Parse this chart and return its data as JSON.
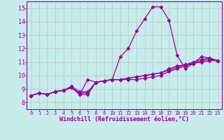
{
  "xlabel": "Windchill (Refroidissement éolien,°C)",
  "bg_color": "#c8ecec",
  "line_color": "#990099",
  "grid_color": "#b0c8c8",
  "ylim": [
    7.5,
    15.5
  ],
  "xlim": [
    -0.5,
    23.5
  ],
  "yticks": [
    8,
    9,
    10,
    11,
    12,
    13,
    14,
    15
  ],
  "xticks": [
    0,
    1,
    2,
    3,
    4,
    5,
    6,
    7,
    8,
    9,
    10,
    11,
    12,
    13,
    14,
    15,
    16,
    17,
    18,
    19,
    20,
    21,
    22,
    23
  ],
  "lines": [
    [
      8.5,
      8.7,
      8.6,
      8.8,
      8.9,
      9.1,
      8.6,
      9.7,
      9.5,
      9.6,
      9.7,
      11.4,
      12.0,
      13.3,
      14.2,
      15.1,
      15.1,
      14.1,
      11.5,
      10.5,
      10.9,
      11.4,
      11.3,
      11.1
    ],
    [
      8.5,
      8.7,
      8.6,
      8.8,
      8.9,
      9.1,
      8.6,
      8.6,
      9.5,
      9.6,
      9.7,
      9.7,
      9.7,
      9.7,
      9.8,
      9.9,
      10.0,
      10.3,
      10.5,
      10.7,
      10.9,
      11.0,
      11.1,
      11.1
    ],
    [
      8.5,
      8.7,
      8.6,
      8.8,
      8.9,
      9.1,
      8.7,
      8.7,
      9.5,
      9.6,
      9.7,
      9.7,
      9.8,
      9.9,
      10.0,
      10.1,
      10.2,
      10.4,
      10.6,
      10.8,
      10.9,
      11.1,
      11.2,
      11.1
    ],
    [
      8.5,
      8.7,
      8.6,
      8.8,
      8.9,
      9.2,
      8.8,
      8.8,
      9.5,
      9.6,
      9.7,
      9.7,
      9.8,
      9.9,
      10.0,
      10.1,
      10.2,
      10.5,
      10.7,
      10.8,
      11.0,
      11.2,
      11.3,
      11.1
    ]
  ],
  "marker": "D",
  "markersize": 2.5,
  "linewidth": 0.9
}
